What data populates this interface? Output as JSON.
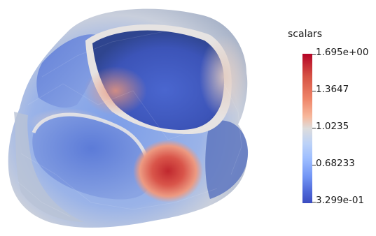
{
  "scalar_bar": {
    "title": "scalars",
    "labels": [
      "1.695e+00",
      "1.3647",
      "1.0235",
      "0.68233",
      "3.299e-01"
    ],
    "colors": {
      "high": "#b40426",
      "mid": "#dddcdc",
      "low": "#3b4cc0"
    }
  }
}
